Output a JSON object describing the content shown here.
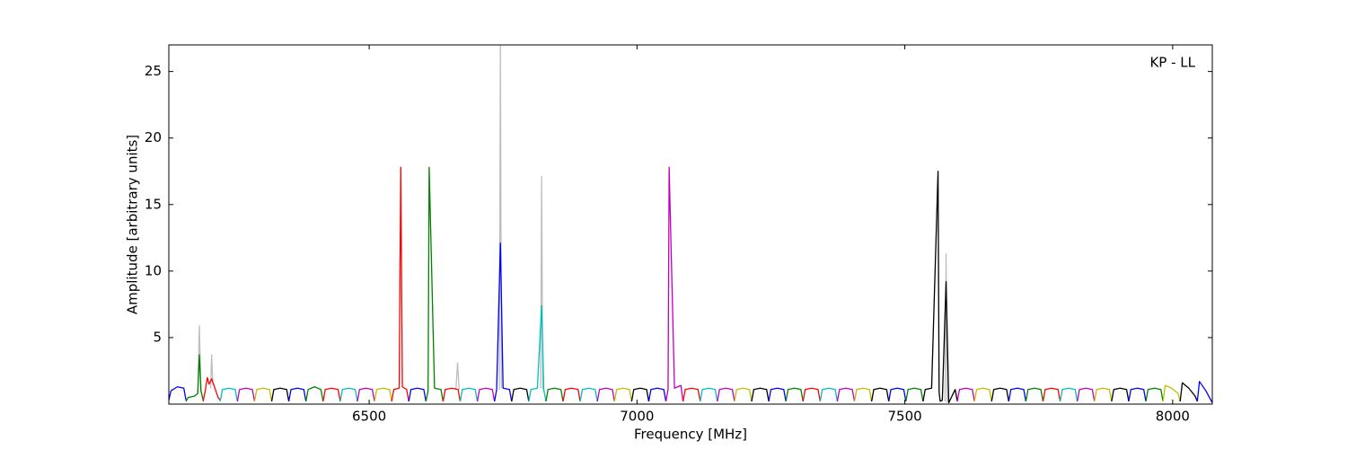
{
  "chart_data": {
    "type": "line",
    "annotation": "KP - LL",
    "xlabel": "Frequency [MHz]",
    "ylabel": "Amplitude [arbitrary units]",
    "xlim": [
      6126,
      8074
    ],
    "ylim": [
      0,
      27
    ],
    "xticks": [
      6500,
      7000,
      7500,
      8000
    ],
    "yticks": [
      5,
      10,
      15,
      20,
      25
    ],
    "grid": false,
    "series": [
      {
        "color": "#bebebe",
        "x": [
          6180,
          6183,
          6186
        ],
        "values": [
          0.8,
          5.9,
          1.0
        ]
      },
      {
        "color": "#bebebe",
        "x": [
          6204,
          6206,
          6208
        ],
        "values": [
          1.2,
          3.7,
          1.5
        ]
      },
      {
        "color": "#bebebe",
        "x": [
          6662,
          6665,
          6668
        ],
        "values": [
          1.1,
          3.1,
          1.1
        ]
      },
      {
        "color": "#bebebe",
        "x": [
          6743,
          6745,
          6747
        ],
        "values": [
          1.1,
          27,
          1.2
        ]
      },
      {
        "color": "#bebebe",
        "x": [
          6820,
          6822,
          6824
        ],
        "values": [
          1.2,
          17.1,
          1.1
        ]
      },
      {
        "color": "#bebebe",
        "x": [
          7575,
          7577,
          7579
        ],
        "values": [
          0.2,
          11.3,
          0.1
        ]
      },
      {
        "color": "#0000ff",
        "x": [
          6126,
          6130,
          6142,
          6154,
          6158
        ],
        "values": [
          0.3,
          1.0,
          1.3,
          1.2,
          0.3
        ]
      },
      {
        "color": "#008000",
        "x": [
          6158,
          6162,
          6174,
          6180,
          6183,
          6186,
          6190
        ],
        "values": [
          0.2,
          0.5,
          0.6,
          0.8,
          3.7,
          1.0,
          0.3
        ]
      },
      {
        "color": "#ff0000",
        "x": [
          6190,
          6194,
          6198,
          6201,
          6206,
          6218,
          6222
        ],
        "values": [
          0.2,
          1.0,
          2.0,
          1.5,
          1.9,
          0.5,
          0.3
        ]
      },
      {
        "color": "#00bfbf",
        "x": [
          6222,
          6226,
          6238,
          6250,
          6254
        ],
        "values": [
          0.2,
          1.1,
          1.2,
          1.1,
          0.2
        ]
      },
      {
        "color": "#bf00bf",
        "x": [
          6254,
          6258,
          6270,
          6282,
          6286
        ],
        "values": [
          0.2,
          1.1,
          1.2,
          1.1,
          0.2
        ]
      },
      {
        "color": "#bfbf00",
        "x": [
          6286,
          6290,
          6302,
          6314,
          6318
        ],
        "values": [
          0.2,
          1.1,
          1.2,
          1.1,
          0.2
        ]
      },
      {
        "color": "#000000",
        "x": [
          6318,
          6322,
          6334,
          6346,
          6350
        ],
        "values": [
          0.2,
          1.1,
          1.2,
          1.1,
          0.2
        ]
      },
      {
        "color": "#0000ff",
        "x": [
          6350,
          6354,
          6366,
          6378,
          6382
        ],
        "values": [
          0.2,
          1.1,
          1.2,
          1.1,
          0.2
        ]
      },
      {
        "color": "#008000",
        "x": [
          6382,
          6386,
          6398,
          6410,
          6414
        ],
        "values": [
          0.2,
          1.1,
          1.3,
          1.1,
          0.2
        ]
      },
      {
        "color": "#ff0000",
        "x": [
          6414,
          6418,
          6430,
          6442,
          6446
        ],
        "values": [
          0.2,
          1.1,
          1.2,
          1.1,
          0.2
        ]
      },
      {
        "color": "#00bfbf",
        "x": [
          6446,
          6450,
          6462,
          6474,
          6478
        ],
        "values": [
          0.2,
          1.1,
          1.2,
          1.1,
          0.2
        ]
      },
      {
        "color": "#bf00bf",
        "x": [
          6478,
          6482,
          6494,
          6506,
          6510
        ],
        "values": [
          0.2,
          1.1,
          1.2,
          1.1,
          0.2
        ]
      },
      {
        "color": "#bfbf00",
        "x": [
          6510,
          6514,
          6526,
          6538,
          6542
        ],
        "values": [
          0.2,
          1.1,
          1.2,
          1.1,
          0.2
        ]
      },
      {
        "color": "#ff0000",
        "x": [
          6542,
          6546,
          6556,
          6559,
          6562,
          6570,
          6574
        ],
        "values": [
          0.2,
          1.1,
          1.2,
          17.8,
          1.3,
          1.1,
          0.2
        ]
      },
      {
        "color": "#0000ff",
        "x": [
          6574,
          6578,
          6590,
          6602,
          6606
        ],
        "values": [
          0.2,
          1.1,
          1.2,
          1.1,
          0.2
        ]
      },
      {
        "color": "#008000",
        "x": [
          6606,
          6610,
          6612,
          6622,
          6634,
          6638
        ],
        "values": [
          0.2,
          1.0,
          17.8,
          1.2,
          1.1,
          0.2
        ]
      },
      {
        "color": "#ff0000",
        "x": [
          6638,
          6642,
          6654,
          6666,
          6670
        ],
        "values": [
          0.2,
          1.1,
          1.2,
          1.1,
          0.2
        ]
      },
      {
        "color": "#00bfbf",
        "x": [
          6670,
          6674,
          6686,
          6698,
          6702
        ],
        "values": [
          0.2,
          1.1,
          1.2,
          1.1,
          0.2
        ]
      },
      {
        "color": "#bf00bf",
        "x": [
          6702,
          6706,
          6718,
          6730,
          6734
        ],
        "values": [
          0.2,
          1.1,
          1.2,
          1.1,
          0.2
        ]
      },
      {
        "color": "#0000ff",
        "x": [
          6734,
          6738,
          6745,
          6750,
          6762,
          6766
        ],
        "values": [
          0.2,
          1.1,
          12.1,
          1.2,
          1.1,
          0.2
        ]
      },
      {
        "color": "#000000",
        "x": [
          6766,
          6770,
          6782,
          6794,
          6798
        ],
        "values": [
          0.2,
          1.1,
          1.2,
          1.1,
          0.2
        ]
      },
      {
        "color": "#00bfbf",
        "x": [
          6798,
          6802,
          6814,
          6822,
          6826,
          6830
        ],
        "values": [
          0.2,
          1.1,
          1.2,
          7.4,
          1.1,
          0.2
        ]
      },
      {
        "color": "#008000",
        "x": [
          6830,
          6834,
          6846,
          6858,
          6862
        ],
        "values": [
          0.2,
          1.1,
          1.2,
          1.1,
          0.2
        ]
      },
      {
        "color": "#ff0000",
        "x": [
          6862,
          6866,
          6878,
          6890,
          6894
        ],
        "values": [
          0.2,
          1.1,
          1.2,
          1.1,
          0.2
        ]
      },
      {
        "color": "#00bfbf",
        "x": [
          6894,
          6898,
          6910,
          6922,
          6926
        ],
        "values": [
          0.2,
          1.1,
          1.2,
          1.1,
          0.2
        ]
      },
      {
        "color": "#bf00bf",
        "x": [
          6926,
          6930,
          6942,
          6954,
          6958
        ],
        "values": [
          0.2,
          1.1,
          1.2,
          1.1,
          0.2
        ]
      },
      {
        "color": "#bfbf00",
        "x": [
          6958,
          6962,
          6974,
          6986,
          6990
        ],
        "values": [
          0.2,
          1.1,
          1.2,
          1.1,
          0.2
        ]
      },
      {
        "color": "#000000",
        "x": [
          6990,
          6994,
          7006,
          7018,
          7022
        ],
        "values": [
          0.2,
          1.1,
          1.2,
          1.1,
          0.2
        ]
      },
      {
        "color": "#0000ff",
        "x": [
          7022,
          7026,
          7038,
          7050,
          7054
        ],
        "values": [
          0.2,
          1.1,
          1.2,
          1.1,
          0.2
        ]
      },
      {
        "color": "#bf00bf",
        "x": [
          7054,
          7058,
          7060,
          7070,
          7082,
          7086
        ],
        "values": [
          0.2,
          1.1,
          17.8,
          1.2,
          1.4,
          0.2
        ]
      },
      {
        "color": "#ff0000",
        "x": [
          7086,
          7090,
          7102,
          7114,
          7118
        ],
        "values": [
          0.2,
          1.1,
          1.2,
          1.1,
          0.2
        ]
      },
      {
        "color": "#00bfbf",
        "x": [
          7118,
          7122,
          7134,
          7146,
          7150
        ],
        "values": [
          0.2,
          1.1,
          1.2,
          1.1,
          0.2
        ]
      },
      {
        "color": "#bf00bf",
        "x": [
          7150,
          7154,
          7166,
          7178,
          7182
        ],
        "values": [
          0.2,
          1.1,
          1.2,
          1.1,
          0.2
        ]
      },
      {
        "color": "#bfbf00",
        "x": [
          7182,
          7186,
          7198,
          7210,
          7214
        ],
        "values": [
          0.2,
          1.1,
          1.2,
          1.1,
          0.2
        ]
      },
      {
        "color": "#000000",
        "x": [
          7214,
          7218,
          7230,
          7242,
          7246
        ],
        "values": [
          0.2,
          1.1,
          1.2,
          1.1,
          0.2
        ]
      },
      {
        "color": "#0000ff",
        "x": [
          7246,
          7250,
          7262,
          7274,
          7278
        ],
        "values": [
          0.2,
          1.1,
          1.2,
          1.1,
          0.2
        ]
      },
      {
        "color": "#008000",
        "x": [
          7278,
          7282,
          7294,
          7306,
          7310
        ],
        "values": [
          0.2,
          1.1,
          1.2,
          1.1,
          0.2
        ]
      },
      {
        "color": "#ff0000",
        "x": [
          7310,
          7314,
          7326,
          7338,
          7342
        ],
        "values": [
          0.2,
          1.1,
          1.2,
          1.1,
          0.2
        ]
      },
      {
        "color": "#00bfbf",
        "x": [
          7342,
          7346,
          7358,
          7370,
          7374
        ],
        "values": [
          0.2,
          1.1,
          1.2,
          1.1,
          0.2
        ]
      },
      {
        "color": "#bf00bf",
        "x": [
          7374,
          7378,
          7390,
          7402,
          7406
        ],
        "values": [
          0.2,
          1.1,
          1.2,
          1.1,
          0.2
        ]
      },
      {
        "color": "#bfbf00",
        "x": [
          7406,
          7410,
          7422,
          7434,
          7438
        ],
        "values": [
          0.2,
          1.1,
          1.2,
          1.1,
          0.2
        ]
      },
      {
        "color": "#000000",
        "x": [
          7438,
          7442,
          7454,
          7466,
          7470
        ],
        "values": [
          0.2,
          1.1,
          1.2,
          1.1,
          0.2
        ]
      },
      {
        "color": "#0000ff",
        "x": [
          7470,
          7474,
          7486,
          7498,
          7502
        ],
        "values": [
          0.2,
          1.1,
          1.2,
          1.1,
          0.2
        ]
      },
      {
        "color": "#008000",
        "x": [
          7502,
          7506,
          7518,
          7530,
          7534
        ],
        "values": [
          0.2,
          1.1,
          1.2,
          1.1,
          0.2
        ]
      },
      {
        "color": "#000000",
        "x": [
          7534,
          7538,
          7550,
          7562,
          7564,
          7566
        ],
        "values": [
          0.2,
          1.1,
          1.2,
          17.5,
          0.9,
          0.2
        ]
      },
      {
        "color": "#000000",
        "x": [
          7566,
          7570,
          7577,
          7582,
          7594,
          7598
        ],
        "values": [
          0.2,
          0.3,
          9.2,
          0.1,
          1.1,
          0.2
        ]
      },
      {
        "color": "#bf00bf",
        "x": [
          7598,
          7602,
          7614,
          7626,
          7630
        ],
        "values": [
          0.2,
          1.1,
          1.2,
          1.1,
          0.2
        ]
      },
      {
        "color": "#bfbf00",
        "x": [
          7630,
          7634,
          7646,
          7658,
          7662
        ],
        "values": [
          0.2,
          1.1,
          1.2,
          1.1,
          0.2
        ]
      },
      {
        "color": "#000000",
        "x": [
          7662,
          7666,
          7678,
          7690,
          7694
        ],
        "values": [
          0.2,
          1.1,
          1.2,
          1.1,
          0.2
        ]
      },
      {
        "color": "#0000ff",
        "x": [
          7694,
          7698,
          7710,
          7722,
          7726
        ],
        "values": [
          0.2,
          1.1,
          1.2,
          1.1,
          0.2
        ]
      },
      {
        "color": "#008000",
        "x": [
          7726,
          7730,
          7742,
          7754,
          7758
        ],
        "values": [
          0.2,
          1.1,
          1.2,
          1.1,
          0.2
        ]
      },
      {
        "color": "#ff0000",
        "x": [
          7758,
          7762,
          7774,
          7786,
          7790
        ],
        "values": [
          0.2,
          1.1,
          1.2,
          1.1,
          0.2
        ]
      },
      {
        "color": "#00bfbf",
        "x": [
          7790,
          7794,
          7806,
          7818,
          7822
        ],
        "values": [
          0.2,
          1.1,
          1.2,
          1.1,
          0.2
        ]
      },
      {
        "color": "#bf00bf",
        "x": [
          7822,
          7826,
          7838,
          7850,
          7854
        ],
        "values": [
          0.2,
          1.1,
          1.2,
          1.1,
          0.2
        ]
      },
      {
        "color": "#bfbf00",
        "x": [
          7854,
          7858,
          7870,
          7882,
          7886
        ],
        "values": [
          0.2,
          1.1,
          1.2,
          1.1,
          0.2
        ]
      },
      {
        "color": "#000000",
        "x": [
          7886,
          7890,
          7902,
          7914,
          7918
        ],
        "values": [
          0.2,
          1.1,
          1.2,
          1.1,
          0.2
        ]
      },
      {
        "color": "#0000ff",
        "x": [
          7918,
          7922,
          7934,
          7946,
          7950
        ],
        "values": [
          0.2,
          1.1,
          1.2,
          1.1,
          0.2
        ]
      },
      {
        "color": "#008000",
        "x": [
          7950,
          7954,
          7966,
          7978,
          7982
        ],
        "values": [
          0.2,
          1.1,
          1.2,
          1.1,
          0.2
        ]
      },
      {
        "color": "#bfbf00",
        "x": [
          7982,
          7986,
          7998,
          8010,
          8014
        ],
        "values": [
          0.2,
          1.4,
          1.2,
          0.8,
          0.2
        ]
      },
      {
        "color": "#000000",
        "x": [
          8014,
          8018,
          8030,
          8042,
          8046
        ],
        "values": [
          0.2,
          1.6,
          1.2,
          0.6,
          0.2
        ]
      },
      {
        "color": "#0000ff",
        "x": [
          8046,
          8050,
          8062,
          8074
        ],
        "values": [
          0.2,
          1.7,
          1.0,
          0.1
        ]
      }
    ]
  }
}
